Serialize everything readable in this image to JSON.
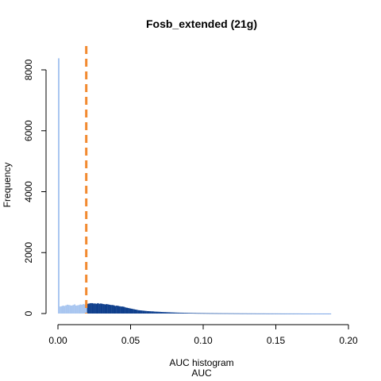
{
  "chart_data": {
    "type": "bar",
    "title": "Fosb_extended (21g)",
    "subtitle": "AUC histogram",
    "xlabel": "AUC",
    "ylabel": "Frequency",
    "xlim": [
      0,
      0.2
    ],
    "ylim": [
      0,
      8000
    ],
    "x_ticks": [
      0.0,
      0.05,
      0.1,
      0.15,
      0.2
    ],
    "x_tick_labels": [
      "0.00",
      "0.05",
      "0.10",
      "0.15",
      "0.20"
    ],
    "y_ticks": [
      0,
      2000,
      4000,
      6000,
      8000
    ],
    "y_tick_labels": [
      "0",
      "2000",
      "4000",
      "6000",
      "8000"
    ],
    "threshold": 0.0195,
    "threshold_style": "dashed",
    "bin_width": 0.001,
    "bins_start": 0.0,
    "values": [
      8380,
      230,
      240,
      260,
      250,
      270,
      290,
      280,
      270,
      260,
      280,
      300,
      260,
      270,
      280,
      300,
      290,
      310,
      300,
      290,
      320,
      330,
      340,
      340,
      330,
      330,
      320,
      340,
      320,
      330,
      320,
      310,
      300,
      310,
      300,
      290,
      280,
      280,
      270,
      250,
      260,
      250,
      240,
      230,
      230,
      220,
      200,
      190,
      180,
      170,
      160,
      150,
      140,
      130,
      120,
      110,
      105,
      100,
      95,
      90,
      85,
      80,
      78,
      75,
      72,
      70,
      65,
      62,
      60,
      58,
      55,
      52,
      50,
      48,
      46,
      44,
      42,
      40,
      38,
      36,
      34,
      32,
      30,
      29,
      28,
      27,
      26,
      25,
      24,
      23,
      22,
      21,
      20,
      19,
      18,
      17,
      16,
      16,
      15,
      15,
      14,
      14,
      13,
      13,
      12,
      12,
      12,
      11,
      11,
      11,
      10,
      10,
      10,
      9,
      9,
      9,
      9,
      8,
      8,
      8,
      8,
      7,
      7,
      7,
      7,
      6,
      6,
      6,
      6,
      6,
      5,
      5,
      5,
      5,
      5,
      5,
      4,
      4,
      4,
      4,
      4,
      4,
      4,
      3,
      3,
      3,
      3,
      3,
      3,
      3,
      3,
      3,
      3,
      2,
      2,
      2,
      2,
      2,
      2,
      2,
      2,
      2,
      2,
      2,
      2,
      2,
      2,
      1,
      1,
      1,
      1,
      1,
      1,
      1,
      1,
      1,
      1,
      1,
      1,
      1,
      1,
      1,
      1,
      1,
      1,
      1,
      1,
      1
    ],
    "colors": {
      "below_threshold": "#a9c6f0",
      "above_threshold": "#0f3f8c",
      "tail_fade_to": "#5b90e0",
      "threshold_line": "#f28a30",
      "axis": "#000000"
    },
    "grid": false,
    "legend": "none"
  }
}
